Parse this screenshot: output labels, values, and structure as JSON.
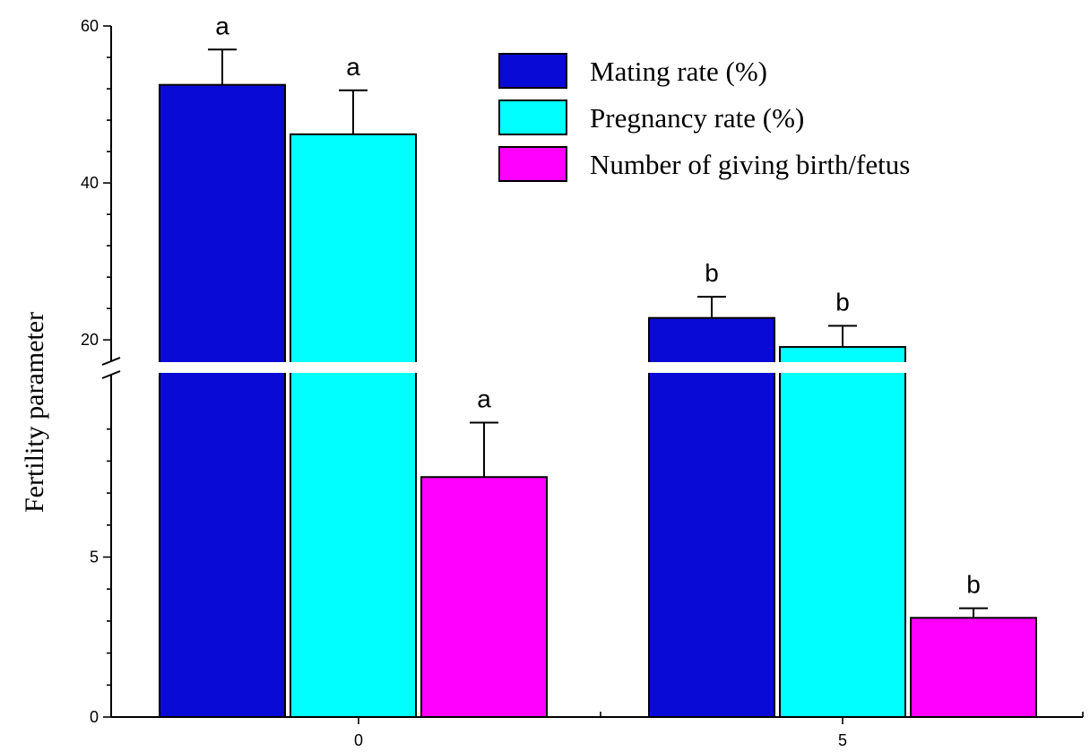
{
  "chart_data": {
    "type": "bar",
    "title": "",
    "xlabel": "",
    "ylabel": "Fertility parameter",
    "categories": [
      "0",
      "5"
    ],
    "y_axis": {
      "broken": true,
      "lower_segment": {
        "range": [
          0,
          10
        ],
        "labeled_ticks": [
          0,
          5
        ]
      },
      "upper_segment": {
        "range": [
          15,
          60
        ],
        "labeled_ticks": [
          20,
          40,
          60
        ]
      }
    },
    "grid": false,
    "legend_position": "top-right",
    "series": [
      {
        "name": "Mating rate (%)",
        "color": "#0A0AD6",
        "values": [
          52.5,
          22.8
        ],
        "errors": [
          4.5,
          2.7
        ],
        "significance": [
          "a",
          "b"
        ]
      },
      {
        "name": "Pregnancy rate (%)",
        "color": "#00FFFF",
        "values": [
          46.2,
          19.1
        ],
        "errors": [
          5.6,
          2.7
        ],
        "significance": [
          "a",
          "b"
        ]
      },
      {
        "name": "Number of giving birth/fetus",
        "color": "#FF00FF",
        "values": [
          7.5,
          3.1
        ],
        "errors": [
          1.7,
          0.3
        ],
        "significance": [
          "a",
          "b"
        ]
      }
    ]
  }
}
